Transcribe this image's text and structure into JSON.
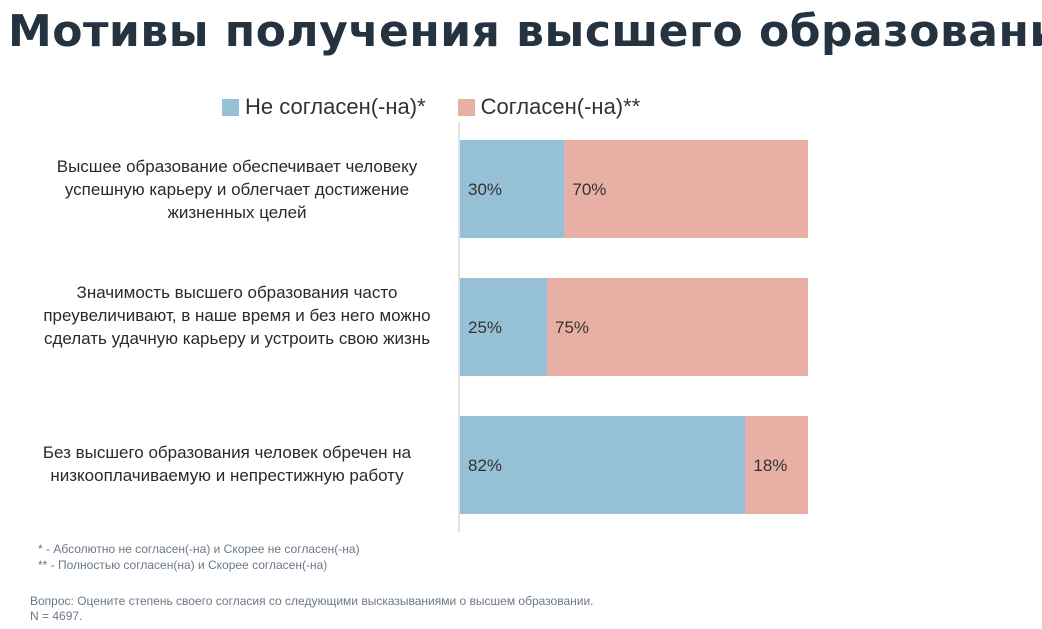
{
  "page": {
    "title": "Мотивы получения высшего образования"
  },
  "legend": [
    {
      "label": "Не согласен(-на)*",
      "color": "#96c0d6"
    },
    {
      "label": "Согласен(-на)**",
      "color": "#e8b0a4"
    }
  ],
  "chart_data": {
    "type": "bar",
    "orientation": "horizontal",
    "stacked": true,
    "percent_scale": [
      0,
      100
    ],
    "categories": [
      "Высшее образование обеспечивает человеку успешную карьеру и облегчает достижение жизненных целей",
      "Значимость высшего образования часто преувеличивают, в наше время и без него можно сделать удачную карьеру и устроить свою жизнь",
      "Без высшего образования человек обречен на низкооплачиваемую и непрестижную работу"
    ],
    "series": [
      {
        "name": "Не согласен(-на)*",
        "values": [
          30,
          25,
          82
        ],
        "labels": [
          "30%",
          "25%",
          "82%"
        ],
        "color": "#96c0d6"
      },
      {
        "name": "Согласен(-на)**",
        "values": [
          70,
          75,
          18
        ],
        "labels": [
          "70%",
          "75%",
          "18%"
        ],
        "color": "#e8b0a4"
      }
    ],
    "title": "Мотивы получения высшего образования",
    "legend_position": "top",
    "grid": false
  },
  "footnotes": {
    "line1": "* - Абсолютно не согласен(-на) и Скорее не согласен(-на)",
    "line2": "** - Полностью согласен(на) и Скорее согласен(-на)"
  },
  "question": {
    "line1": "Вопрос: Оцените степень своего согласия со следующими высказываниями о высшем образовании.",
    "line2": "N = 4697."
  }
}
